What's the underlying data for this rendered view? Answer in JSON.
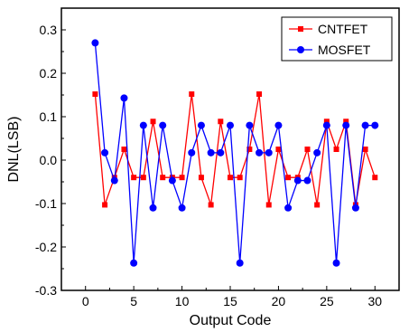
{
  "chart_data": {
    "type": "line",
    "xlabel": "Output Code",
    "ylabel": "DNL(LSB)",
    "xlim": [
      -2.5,
      32.5
    ],
    "ylim": [
      -0.3,
      0.35
    ],
    "xticks": [
      0,
      5,
      10,
      15,
      20,
      25,
      30
    ],
    "yticks": [
      -0.3,
      -0.2,
      -0.1,
      0.0,
      0.1,
      0.2,
      0.3
    ],
    "ytick_labels": [
      "-0.3",
      "-0.2",
      "-0.1",
      "0.0",
      "0.1",
      "0.2",
      "0.3"
    ],
    "grid": false,
    "legend_position": "top-right",
    "x": [
      1,
      2,
      3,
      4,
      5,
      6,
      7,
      8,
      9,
      10,
      11,
      12,
      13,
      14,
      15,
      16,
      17,
      18,
      19,
      20,
      21,
      22,
      23,
      24,
      25,
      26,
      27,
      28,
      29,
      30
    ],
    "series": [
      {
        "name": "CNTFET",
        "color": "#ff0000",
        "marker": "square",
        "values": [
          0.152,
          -0.103,
          -0.04,
          0.025,
          -0.04,
          -0.04,
          0.089,
          -0.04,
          -0.04,
          -0.04,
          0.152,
          -0.04,
          -0.103,
          0.089,
          -0.04,
          -0.04,
          0.025,
          0.152,
          -0.103,
          0.025,
          -0.04,
          -0.04,
          0.025,
          -0.103,
          0.089,
          0.025,
          0.089,
          -0.103,
          0.025,
          -0.04
        ]
      },
      {
        "name": "MOSFET",
        "color": "#0000ff",
        "marker": "circle",
        "values": [
          0.27,
          0.017,
          -0.047,
          0.143,
          -0.237,
          0.08,
          -0.11,
          0.08,
          -0.047,
          -0.11,
          0.017,
          0.08,
          0.017,
          0.017,
          0.08,
          -0.237,
          0.08,
          0.017,
          0.017,
          0.08,
          -0.11,
          -0.047,
          -0.047,
          0.017,
          0.08,
          -0.237,
          0.08,
          -0.11,
          0.08,
          0.08
        ]
      }
    ]
  }
}
